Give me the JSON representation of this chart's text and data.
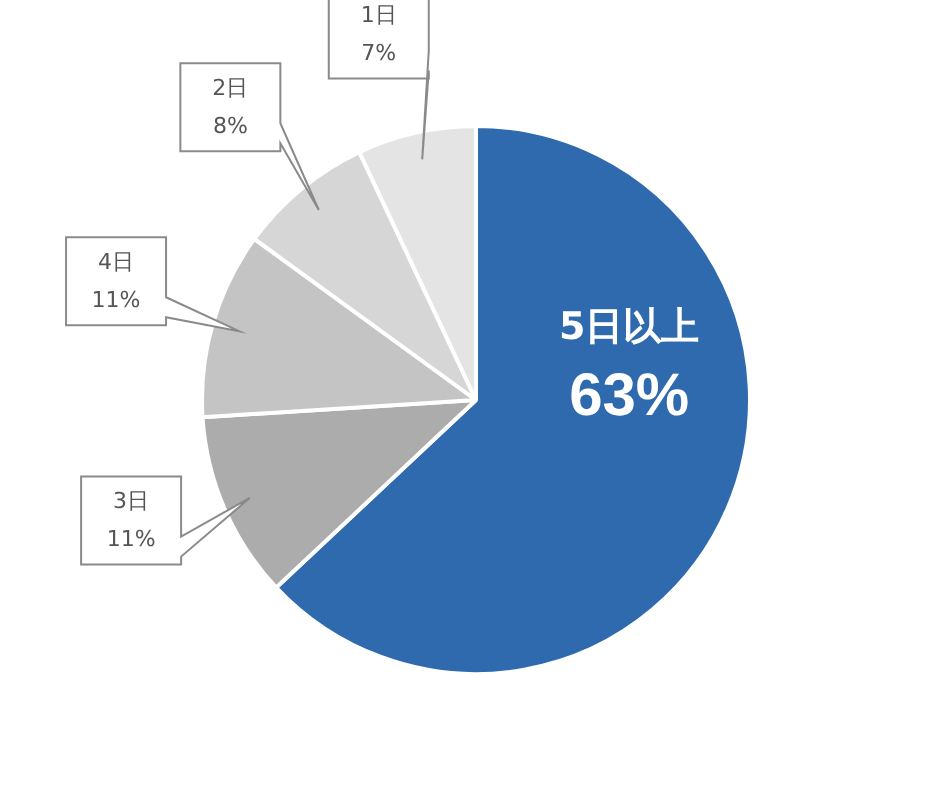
{
  "chart_data": {
    "type": "pie",
    "categories": [
      "5日以上",
      "3日",
      "4日",
      "2日",
      "1日"
    ],
    "values": [
      63,
      11,
      11,
      8,
      7
    ],
    "colors": [
      "#2e6aad",
      "#acacac",
      "#c4c4c4",
      "#d6d6d6",
      "#e4e4e4"
    ],
    "value_labels": [
      "63%",
      "11%",
      "11%",
      "8%",
      "7%"
    ]
  }
}
